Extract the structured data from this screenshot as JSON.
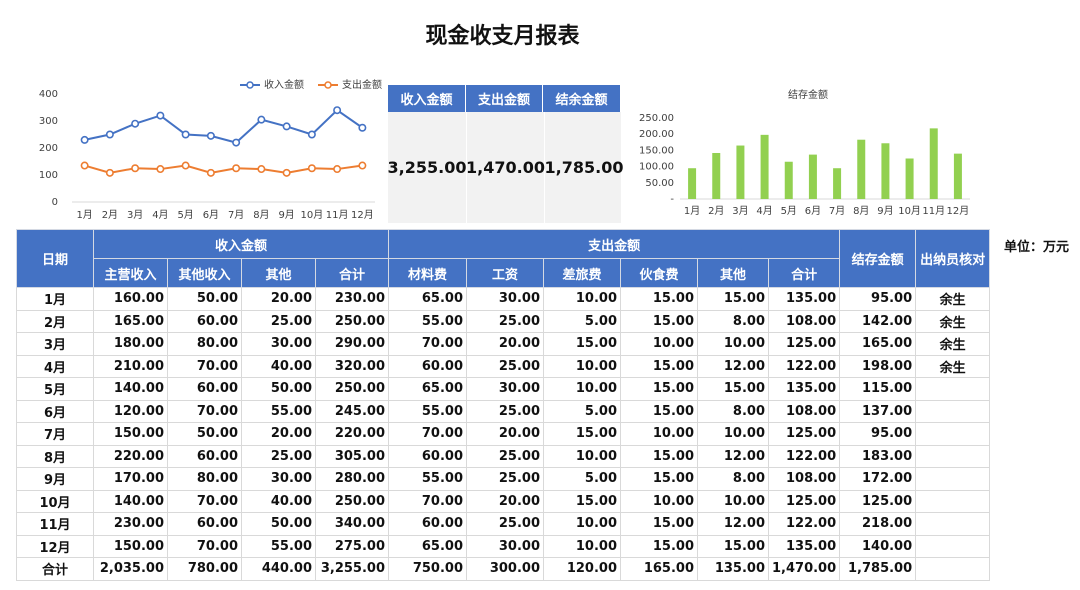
{
  "title": "现金收支月报表",
  "unit_label": "单位：万元",
  "summary": {
    "headers": [
      "收入金额",
      "支出金额",
      "结余金额"
    ],
    "values": [
      "3,255.00",
      "1,470.00",
      "1,785.00"
    ]
  },
  "table": {
    "date_header": "日期",
    "group_income": "收入金额",
    "group_expense": "支出金额",
    "balance_header": "结存金额",
    "cashier_header": "出纳员核对",
    "sub_income": [
      "主营收入",
      "其他收入",
      "其他",
      "合计"
    ],
    "sub_expense": [
      "材料费",
      "工资",
      "差旅费",
      "伙食费",
      "其他",
      "合计"
    ],
    "rows": [
      {
        "month": "1月",
        "income": [
          "160.00",
          "50.00",
          "20.00",
          "230.00"
        ],
        "expense": [
          "65.00",
          "30.00",
          "10.00",
          "15.00",
          "15.00",
          "135.00"
        ],
        "balance": "95.00",
        "cashier": "余生"
      },
      {
        "month": "2月",
        "income": [
          "165.00",
          "60.00",
          "25.00",
          "250.00"
        ],
        "expense": [
          "55.00",
          "25.00",
          "5.00",
          "15.00",
          "8.00",
          "108.00"
        ],
        "balance": "142.00",
        "cashier": "余生"
      },
      {
        "month": "3月",
        "income": [
          "180.00",
          "80.00",
          "30.00",
          "290.00"
        ],
        "expense": [
          "70.00",
          "20.00",
          "15.00",
          "10.00",
          "10.00",
          "125.00"
        ],
        "balance": "165.00",
        "cashier": "余生"
      },
      {
        "month": "4月",
        "income": [
          "210.00",
          "70.00",
          "40.00",
          "320.00"
        ],
        "expense": [
          "60.00",
          "25.00",
          "10.00",
          "15.00",
          "12.00",
          "122.00"
        ],
        "balance": "198.00",
        "cashier": "余生"
      },
      {
        "month": "5月",
        "income": [
          "140.00",
          "60.00",
          "50.00",
          "250.00"
        ],
        "expense": [
          "65.00",
          "30.00",
          "10.00",
          "15.00",
          "15.00",
          "135.00"
        ],
        "balance": "115.00",
        "cashier": ""
      },
      {
        "month": "6月",
        "income": [
          "120.00",
          "70.00",
          "55.00",
          "245.00"
        ],
        "expense": [
          "55.00",
          "25.00",
          "5.00",
          "15.00",
          "8.00",
          "108.00"
        ],
        "balance": "137.00",
        "cashier": ""
      },
      {
        "month": "7月",
        "income": [
          "150.00",
          "50.00",
          "20.00",
          "220.00"
        ],
        "expense": [
          "70.00",
          "20.00",
          "15.00",
          "10.00",
          "10.00",
          "125.00"
        ],
        "balance": "95.00",
        "cashier": ""
      },
      {
        "month": "8月",
        "income": [
          "220.00",
          "60.00",
          "25.00",
          "305.00"
        ],
        "expense": [
          "60.00",
          "25.00",
          "10.00",
          "15.00",
          "12.00",
          "122.00"
        ],
        "balance": "183.00",
        "cashier": ""
      },
      {
        "month": "9月",
        "income": [
          "170.00",
          "80.00",
          "30.00",
          "280.00"
        ],
        "expense": [
          "55.00",
          "25.00",
          "5.00",
          "15.00",
          "8.00",
          "108.00"
        ],
        "balance": "172.00",
        "cashier": ""
      },
      {
        "month": "10月",
        "income": [
          "140.00",
          "70.00",
          "40.00",
          "250.00"
        ],
        "expense": [
          "70.00",
          "20.00",
          "15.00",
          "10.00",
          "10.00",
          "125.00"
        ],
        "balance": "125.00",
        "cashier": ""
      },
      {
        "month": "11月",
        "income": [
          "230.00",
          "60.00",
          "50.00",
          "340.00"
        ],
        "expense": [
          "60.00",
          "25.00",
          "10.00",
          "15.00",
          "12.00",
          "122.00"
        ],
        "balance": "218.00",
        "cashier": ""
      },
      {
        "month": "12月",
        "income": [
          "150.00",
          "70.00",
          "55.00",
          "275.00"
        ],
        "expense": [
          "65.00",
          "30.00",
          "10.00",
          "15.00",
          "15.00",
          "135.00"
        ],
        "balance": "140.00",
        "cashier": ""
      }
    ],
    "total": {
      "month": "合计",
      "income": [
        "2,035.00",
        "780.00",
        "440.00",
        "3,255.00"
      ],
      "expense": [
        "750.00",
        "300.00",
        "120.00",
        "165.00",
        "135.00",
        "1,470.00"
      ],
      "balance": "1,785.00",
      "cashier": ""
    }
  },
  "colors": {
    "header_blue": "#4472c4",
    "income_line": "#4472c4",
    "expense_line": "#ed7d31",
    "bar_green": "#92d050"
  },
  "chart_data": [
    {
      "type": "line",
      "title": "",
      "categories": [
        "1月",
        "2月",
        "3月",
        "4月",
        "5月",
        "6月",
        "7月",
        "8月",
        "9月",
        "10月",
        "11月",
        "12月"
      ],
      "series": [
        {
          "name": "收入金额",
          "values": [
            230,
            250,
            290,
            320,
            250,
            245,
            220,
            305,
            280,
            250,
            340,
            275
          ]
        },
        {
          "name": "支出金额",
          "values": [
            135,
            108,
            125,
            122,
            135,
            108,
            125,
            122,
            108,
            125,
            122,
            135
          ]
        }
      ],
      "ylim": [
        0,
        400
      ],
      "yticks": [
        "0",
        "100",
        "200",
        "300",
        "400"
      ],
      "legend": "top-right",
      "grid": false
    },
    {
      "type": "bar",
      "title": "结存金额",
      "categories": [
        "1月",
        "2月",
        "3月",
        "4月",
        "5月",
        "6月",
        "7月",
        "8月",
        "9月",
        "10月",
        "11月",
        "12月"
      ],
      "values": [
        95,
        142,
        165,
        198,
        115,
        137,
        95,
        183,
        172,
        125,
        218,
        140
      ],
      "ylim": [
        0,
        250
      ],
      "yticks": [
        "-",
        "50.00",
        "100.00",
        "150.00",
        "200.00",
        "250.00"
      ],
      "grid": false
    }
  ]
}
